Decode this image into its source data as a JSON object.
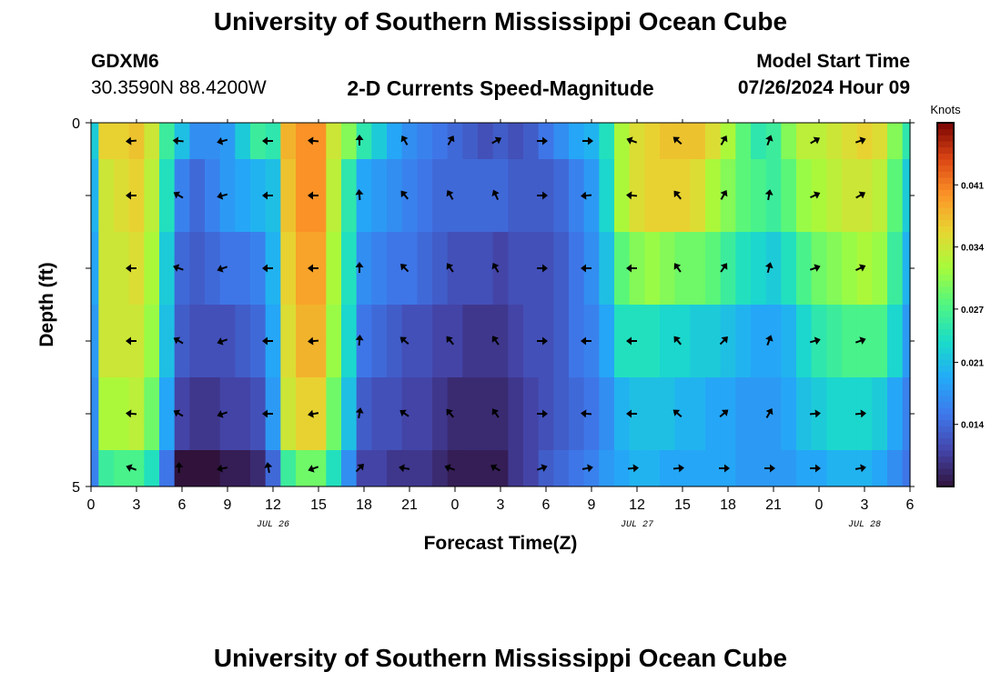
{
  "header": {
    "title": "University of Southern Mississippi Ocean Cube",
    "station_id": "GDXM6",
    "station_location": "30.3590N  88.4200W",
    "plot_subtitle": "2-D Currents Speed-Magnitude",
    "model_label": "Model Start Time",
    "model_time": "07/26/2024 Hour 09"
  },
  "footer": {
    "title": "University of Southern Mississippi Ocean Cube"
  },
  "chart_data": {
    "type": "heatmap",
    "title": "2-D Currents Speed-Magnitude",
    "xlabel": "Forecast Time(Z)",
    "ylabel": "Depth (ft)",
    "x_tick_labels": [
      "0",
      "3",
      "6",
      "9",
      "12",
      "15",
      "18",
      "21",
      "0",
      "3",
      "6",
      "9",
      "12",
      "15",
      "18",
      "21",
      "0",
      "3",
      "6"
    ],
    "x_hours": [
      0,
      3,
      6,
      9,
      12,
      15,
      18,
      21,
      24,
      27,
      30,
      33,
      36,
      39,
      42,
      45,
      48,
      51,
      54
    ],
    "date_labels": [
      {
        "text": "JUL 26",
        "hour": 12
      },
      {
        "text": "JUL 27",
        "hour": 36
      },
      {
        "text": "JUL 28",
        "hour": 51
      }
    ],
    "y_tick_labels": [
      "0",
      "5"
    ],
    "ylim": [
      0,
      5
    ],
    "xlim": [
      0,
      54
    ],
    "colorbar": {
      "label": "Knots",
      "min": 0.007,
      "max": 0.048,
      "ticks": [
        0.014,
        0.021,
        0.027,
        0.034,
        0.041
      ],
      "tick_labels": [
        "0.014",
        "0.021",
        "0.027",
        "0.034",
        "0.041"
      ]
    },
    "depth_levels_ft": [
      0.25,
      1,
      2,
      3,
      4,
      4.75
    ],
    "row_bounds_ft": [
      0,
      0.5,
      1.5,
      2.5,
      3.5,
      4.5,
      5
    ],
    "column_hours": [
      0,
      1,
      2,
      3,
      4,
      5,
      6,
      7,
      8,
      9,
      10,
      11,
      12,
      13,
      14,
      15,
      16,
      17,
      18,
      19,
      20,
      21,
      22,
      23,
      24,
      25,
      26,
      27,
      28,
      29,
      30,
      31,
      32,
      33,
      34,
      35,
      36,
      37,
      38,
      39,
      40,
      41,
      42,
      43,
      44,
      45,
      46,
      47,
      48,
      49,
      50,
      51,
      52,
      53,
      54
    ],
    "speed_knots": [
      [
        0.022,
        0.036,
        0.036,
        0.037,
        0.034,
        0.026,
        0.021,
        0.017,
        0.017,
        0.018,
        0.022,
        0.026,
        0.025,
        0.038,
        0.04,
        0.04,
        0.034,
        0.03,
        0.025,
        0.022,
        0.019,
        0.017,
        0.016,
        0.015,
        0.014,
        0.013,
        0.012,
        0.013,
        0.012,
        0.013,
        0.015,
        0.017,
        0.019,
        0.02,
        0.024,
        0.032,
        0.035,
        0.036,
        0.037,
        0.037,
        0.037,
        0.035,
        0.032,
        0.028,
        0.025,
        0.026,
        0.03,
        0.033,
        0.033,
        0.034,
        0.035,
        0.036,
        0.035,
        0.03,
        0.025
      ],
      [
        0.02,
        0.034,
        0.035,
        0.036,
        0.033,
        0.024,
        0.016,
        0.014,
        0.016,
        0.018,
        0.019,
        0.02,
        0.021,
        0.037,
        0.04,
        0.04,
        0.033,
        0.025,
        0.019,
        0.018,
        0.017,
        0.016,
        0.015,
        0.014,
        0.014,
        0.014,
        0.014,
        0.014,
        0.013,
        0.013,
        0.013,
        0.014,
        0.016,
        0.018,
        0.023,
        0.032,
        0.035,
        0.036,
        0.036,
        0.036,
        0.035,
        0.032,
        0.03,
        0.028,
        0.027,
        0.026,
        0.028,
        0.031,
        0.032,
        0.033,
        0.034,
        0.034,
        0.033,
        0.028,
        0.022
      ],
      [
        0.019,
        0.034,
        0.034,
        0.035,
        0.032,
        0.022,
        0.014,
        0.013,
        0.014,
        0.015,
        0.015,
        0.016,
        0.02,
        0.036,
        0.039,
        0.039,
        0.032,
        0.024,
        0.017,
        0.016,
        0.015,
        0.015,
        0.014,
        0.013,
        0.012,
        0.012,
        0.012,
        0.011,
        0.012,
        0.012,
        0.012,
        0.013,
        0.015,
        0.017,
        0.021,
        0.028,
        0.03,
        0.031,
        0.03,
        0.029,
        0.029,
        0.028,
        0.026,
        0.024,
        0.023,
        0.022,
        0.024,
        0.027,
        0.029,
        0.03,
        0.031,
        0.032,
        0.031,
        0.026,
        0.02
      ],
      [
        0.018,
        0.034,
        0.034,
        0.034,
        0.031,
        0.021,
        0.013,
        0.012,
        0.012,
        0.012,
        0.013,
        0.014,
        0.019,
        0.035,
        0.038,
        0.038,
        0.031,
        0.023,
        0.015,
        0.014,
        0.013,
        0.012,
        0.012,
        0.011,
        0.011,
        0.01,
        0.01,
        0.01,
        0.011,
        0.012,
        0.012,
        0.013,
        0.015,
        0.016,
        0.019,
        0.024,
        0.024,
        0.024,
        0.023,
        0.023,
        0.022,
        0.022,
        0.021,
        0.02,
        0.019,
        0.019,
        0.02,
        0.023,
        0.025,
        0.026,
        0.027,
        0.027,
        0.027,
        0.023,
        0.018
      ],
      [
        0.017,
        0.032,
        0.032,
        0.033,
        0.029,
        0.019,
        0.011,
        0.01,
        0.01,
        0.011,
        0.011,
        0.012,
        0.018,
        0.034,
        0.036,
        0.036,
        0.029,
        0.021,
        0.013,
        0.012,
        0.012,
        0.011,
        0.011,
        0.01,
        0.009,
        0.009,
        0.009,
        0.009,
        0.01,
        0.011,
        0.012,
        0.013,
        0.014,
        0.015,
        0.017,
        0.02,
        0.021,
        0.021,
        0.021,
        0.02,
        0.02,
        0.019,
        0.019,
        0.018,
        0.018,
        0.018,
        0.019,
        0.021,
        0.022,
        0.023,
        0.023,
        0.023,
        0.022,
        0.019,
        0.016
      ],
      [
        0.016,
        0.026,
        0.027,
        0.027,
        0.024,
        0.015,
        0.007,
        0.006,
        0.007,
        0.008,
        0.008,
        0.009,
        0.014,
        0.026,
        0.029,
        0.029,
        0.024,
        0.017,
        0.011,
        0.011,
        0.01,
        0.01,
        0.01,
        0.009,
        0.008,
        0.008,
        0.008,
        0.008,
        0.01,
        0.011,
        0.013,
        0.014,
        0.015,
        0.016,
        0.018,
        0.019,
        0.02,
        0.02,
        0.019,
        0.019,
        0.019,
        0.019,
        0.019,
        0.018,
        0.018,
        0.018,
        0.018,
        0.019,
        0.019,
        0.02,
        0.02,
        0.02,
        0.019,
        0.017,
        0.015
      ]
    ],
    "vector_hours": [
      2.7,
      5.8,
      8.7,
      11.7,
      14.7,
      17.7,
      20.7,
      23.7,
      26.7,
      29.7,
      32.7,
      35.7,
      38.7,
      41.7,
      44.7,
      47.7,
      50.7
    ],
    "vector_angles_deg": [
      [
        185,
        175,
        195,
        180,
        175,
        90,
        120,
        60,
        30,
        0,
        0,
        160,
        140,
        60,
        70,
        30,
        20
      ],
      [
        180,
        150,
        195,
        180,
        180,
        95,
        130,
        120,
        115,
        0,
        185,
        175,
        130,
        60,
        80,
        25,
        30
      ],
      [
        180,
        160,
        200,
        180,
        180,
        90,
        135,
        125,
        120,
        0,
        180,
        180,
        125,
        55,
        75,
        20,
        25
      ],
      [
        180,
        150,
        200,
        180,
        185,
        85,
        140,
        130,
        125,
        0,
        180,
        180,
        130,
        45,
        70,
        15,
        20
      ],
      [
        175,
        150,
        200,
        180,
        190,
        80,
        145,
        130,
        125,
        0,
        175,
        180,
        140,
        40,
        60,
        5,
        5
      ],
      [
        160,
        90,
        190,
        100,
        200,
        45,
        170,
        160,
        150,
        20,
        10,
        5,
        5,
        0,
        0,
        0,
        10
      ]
    ]
  }
}
